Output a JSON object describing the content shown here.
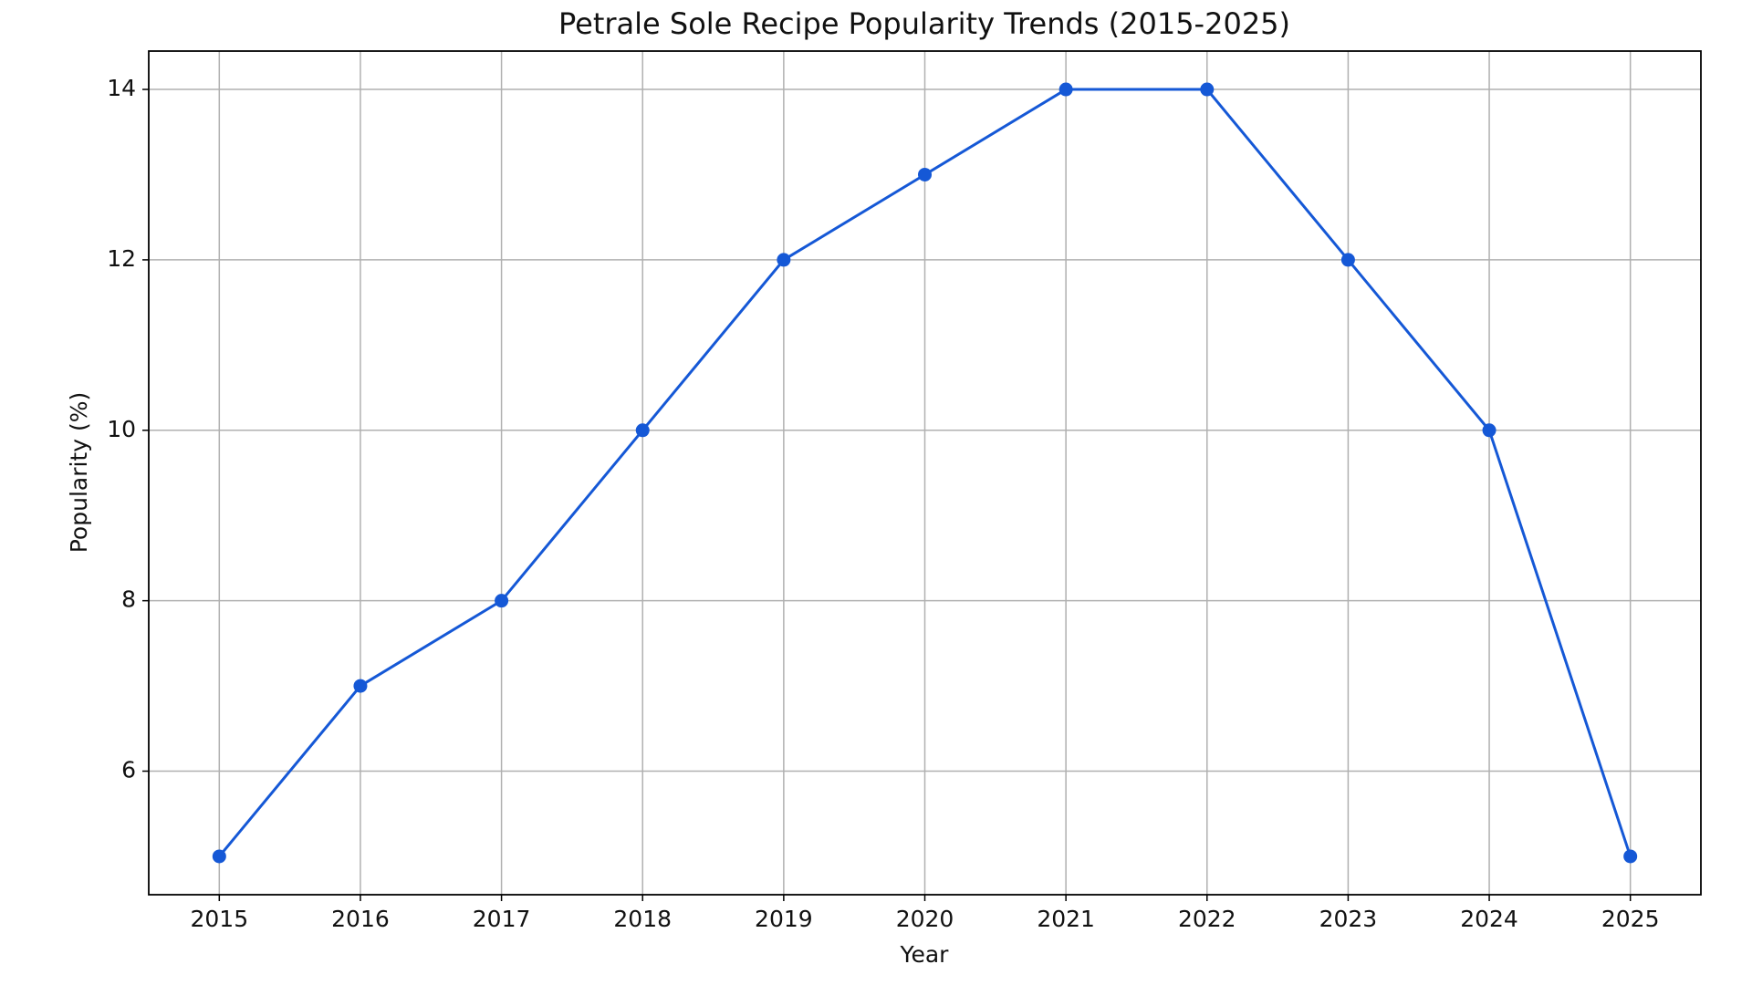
{
  "chart_data": {
    "type": "line",
    "title": "Petrale Sole Recipe Popularity Trends (2015-2025)",
    "x_label": "Year",
    "y_label": "Popularity (%)",
    "x": [
      2015,
      2016,
      2017,
      2018,
      2019,
      2020,
      2021,
      2022,
      2023,
      2024,
      2025
    ],
    "values": [
      5,
      7,
      8,
      10,
      12,
      13,
      14,
      14,
      12,
      10,
      5
    ],
    "color": "#1558d6",
    "xlim": [
      2014.5,
      2025.5
    ],
    "xticks": [
      2015,
      2016,
      2017,
      2018,
      2019,
      2020,
      2021,
      2022,
      2023,
      2024,
      2025
    ],
    "ylim": [
      4.55,
      14.45
    ],
    "yticks": [
      6,
      8,
      10,
      12,
      14
    ],
    "grid": true,
    "markers": true
  }
}
